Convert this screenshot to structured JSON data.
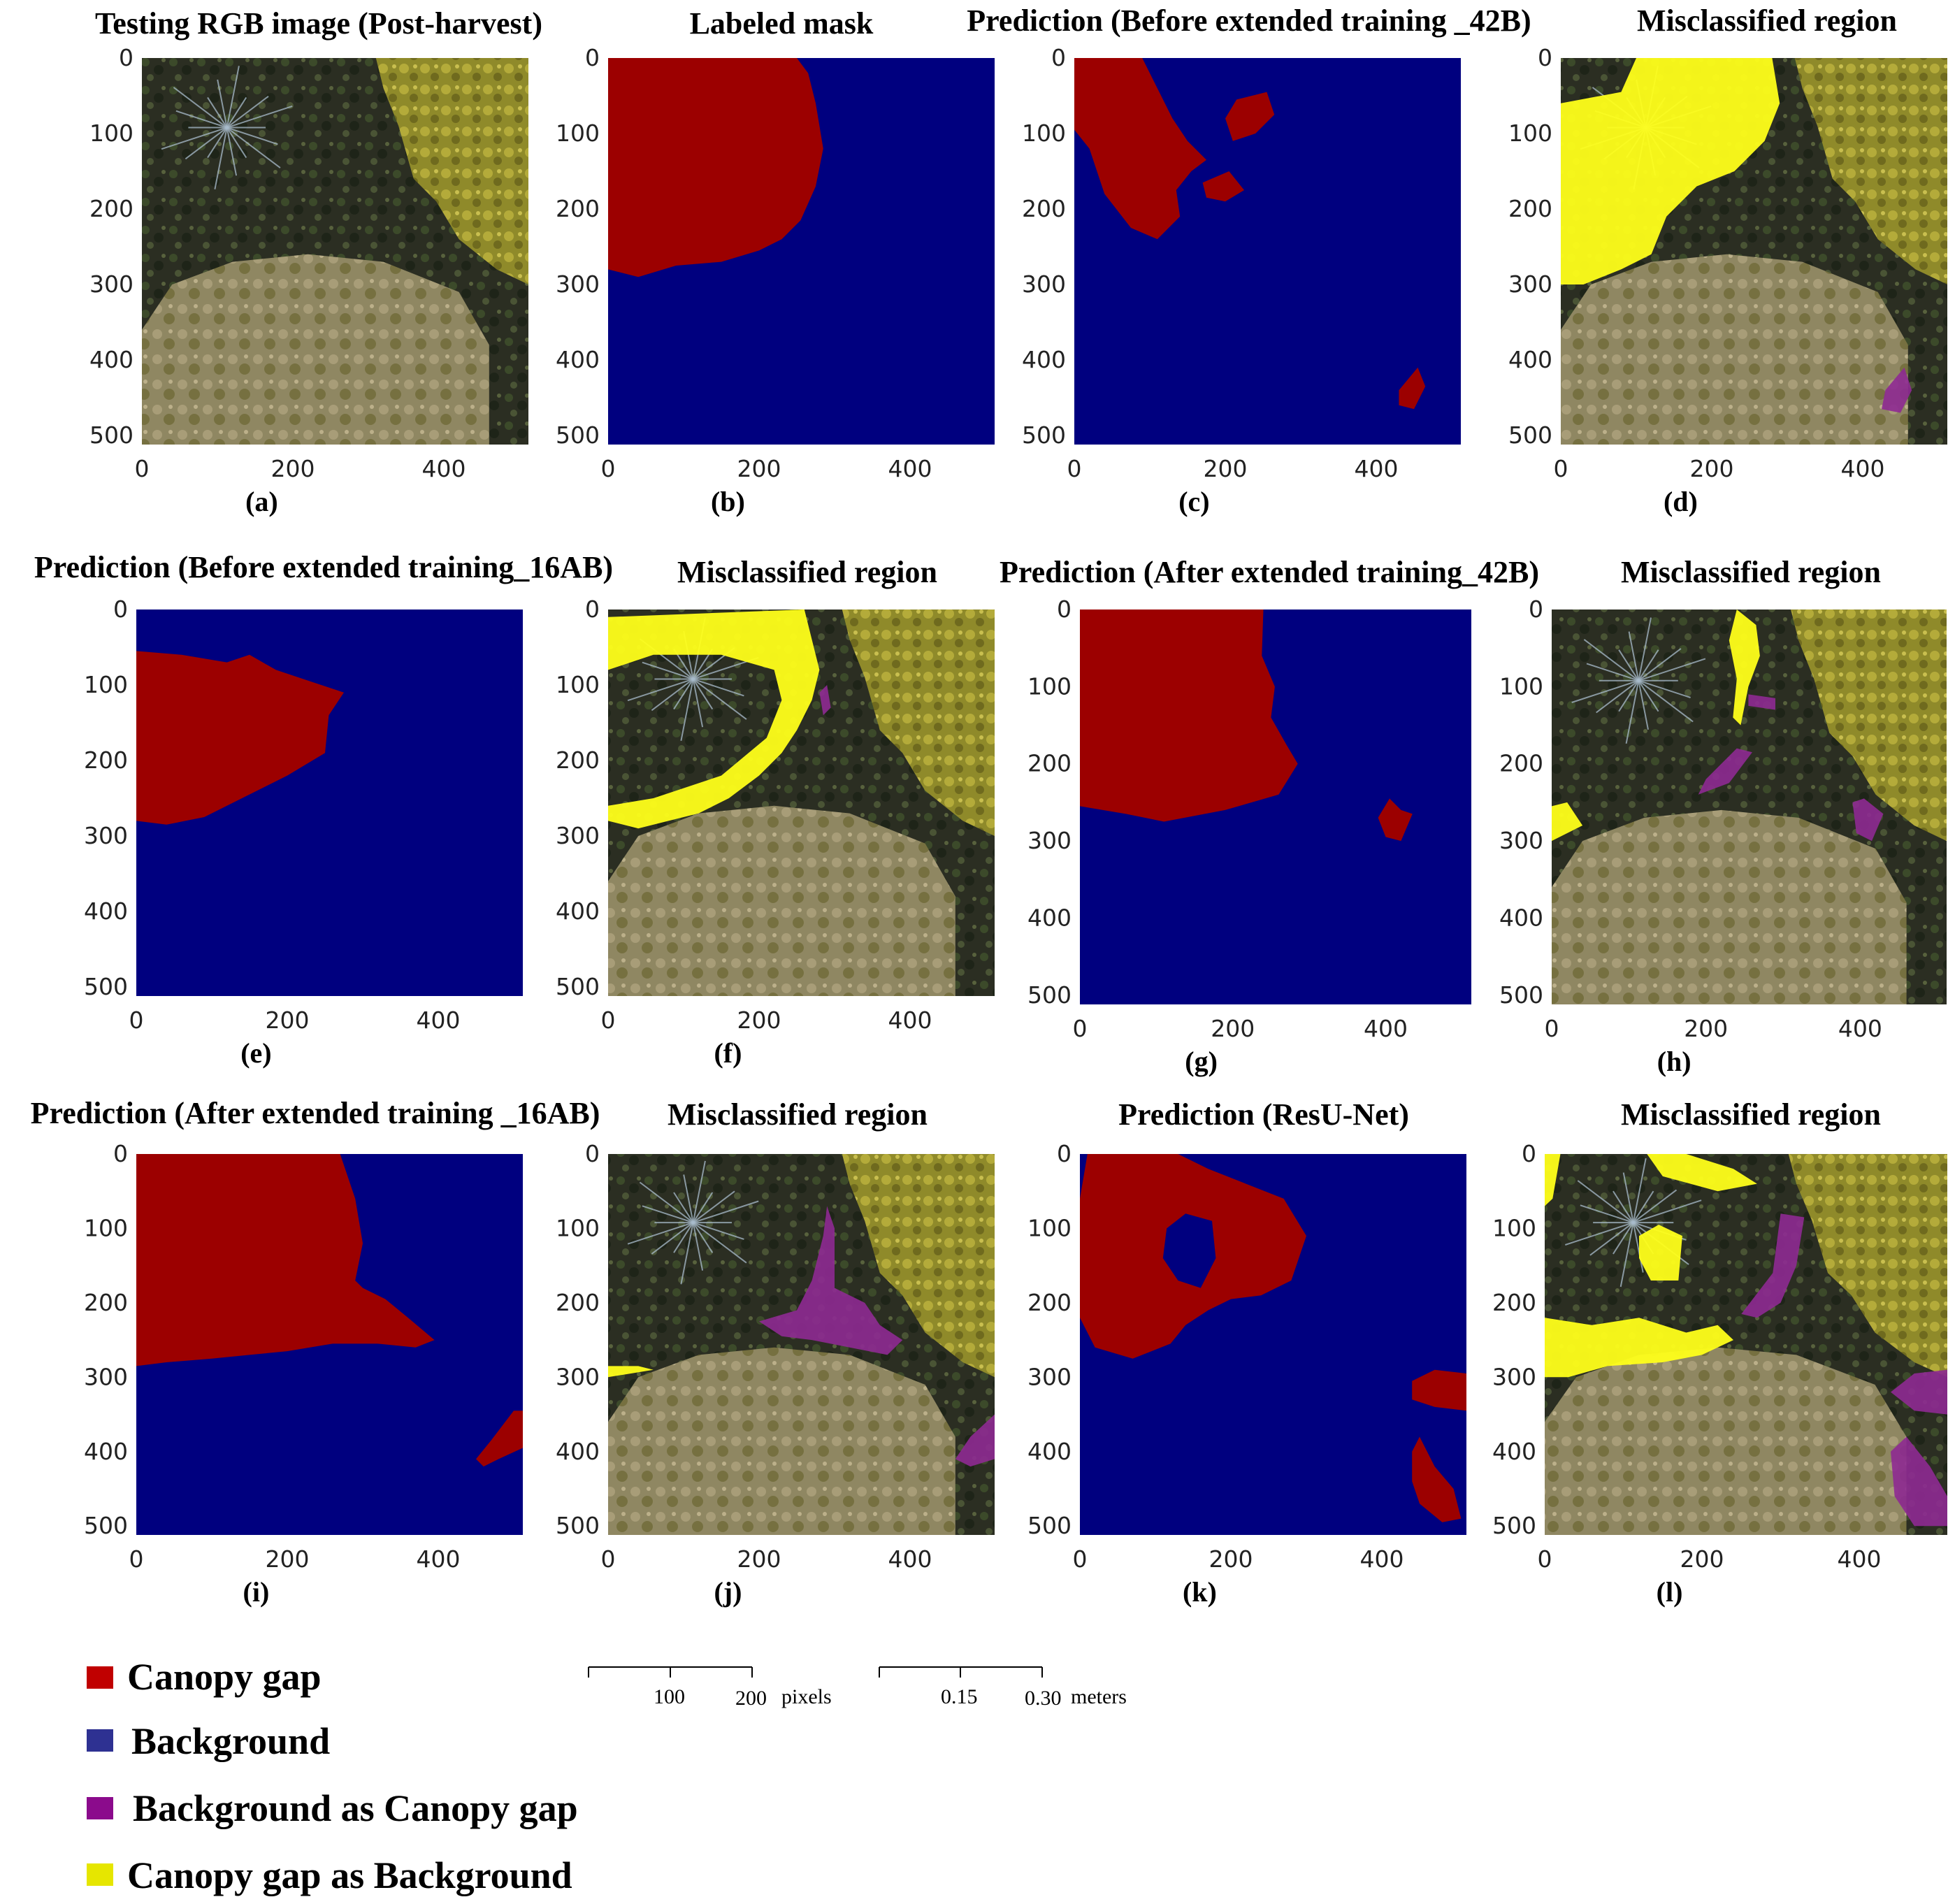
{
  "figure": {
    "panels": [
      {
        "id": "a",
        "title": "Testing RGB image (Post-harvest)",
        "label": "(a)",
        "kind": "rgb",
        "gap": [],
        "miss_yellow": [],
        "miss_purple": []
      },
      {
        "id": "b",
        "title": "Labeled mask",
        "label": "(b)",
        "kind": "mask"
      },
      {
        "id": "c",
        "title": "Prediction (Before extended training _42B)",
        "label": "(c)",
        "kind": "mask"
      },
      {
        "id": "d",
        "title": "Misclassified region",
        "label": "(d)",
        "kind": "rgb"
      },
      {
        "id": "e",
        "title": "Prediction (Before extended training_16AB)",
        "label": "(e)",
        "kind": "mask"
      },
      {
        "id": "f",
        "title": "Misclassified region",
        "label": "(f)",
        "kind": "rgb"
      },
      {
        "id": "g",
        "title": "Prediction (After extended training_42B)",
        "label": "(g)",
        "kind": "mask"
      },
      {
        "id": "h",
        "title": "Misclassified region",
        "label": "(h)",
        "kind": "rgb"
      },
      {
        "id": "i",
        "title": "Prediction (After extended training _16AB)",
        "label": "(i)",
        "kind": "mask"
      },
      {
        "id": "j",
        "title": "Misclassified region",
        "label": "(j)",
        "kind": "rgb"
      },
      {
        "id": "k",
        "title": "Prediction (ResU-Net)",
        "label": "(k)",
        "kind": "mask"
      },
      {
        "id": "l",
        "title": "Misclassified region",
        "label": "(l)",
        "kind": "rgb"
      }
    ],
    "x_ticks": [
      "0",
      "200",
      "400"
    ],
    "y_ticks": [
      "0",
      "100",
      "200",
      "300",
      "400",
      "500"
    ]
  },
  "legend": {
    "items": [
      {
        "label": "Canopy gap",
        "color": "#c00000"
      },
      {
        "label": "Background",
        "color": "#2e3192"
      },
      {
        "label": "Background as Canopy gap",
        "color": "#8b0b8c"
      },
      {
        "label": "Canopy gap as Background",
        "color": "#e6e600"
      }
    ]
  },
  "scale_bars": {
    "pixels": {
      "ticks": [
        "100",
        "200"
      ],
      "unit": "pixels"
    },
    "meters": {
      "ticks": [
        "0.15",
        "0.30"
      ],
      "unit": "meters"
    }
  },
  "colors": {
    "canopy_gap": "#9c0000",
    "background": "#00007f",
    "misclass_yellow": "#ffff1a",
    "misclass_purple": "#8e2a92"
  }
}
